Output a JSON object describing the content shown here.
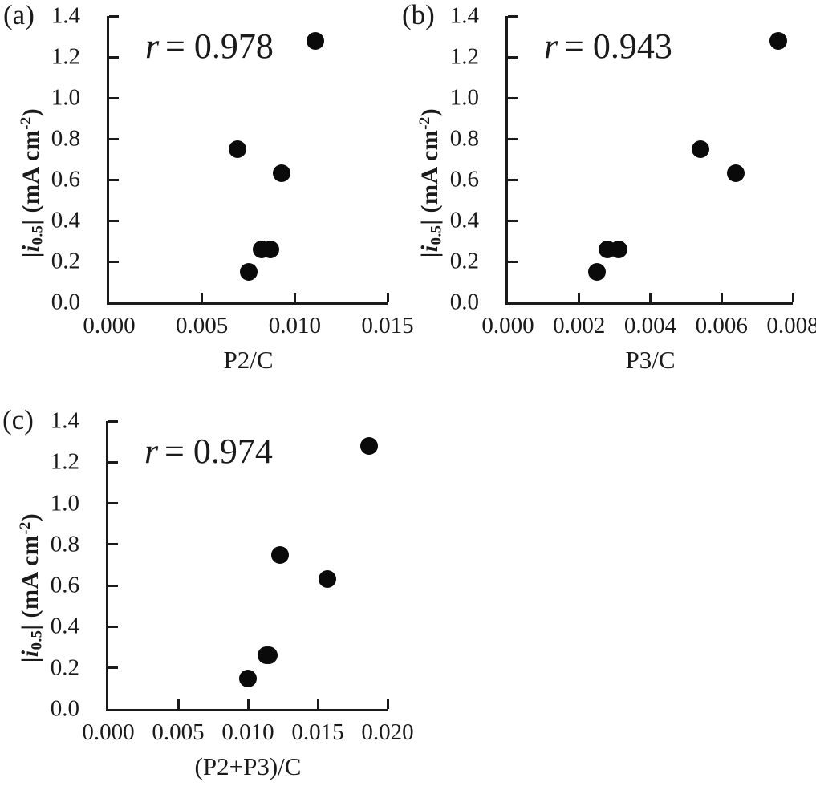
{
  "figure": {
    "background": "#ffffff"
  },
  "colors": {
    "points": "#0a0a0a",
    "axes": "#1a1a1a",
    "text": "#1a1a1a"
  },
  "chart_data": [
    {
      "type": "scatter",
      "panel_label": "(a)",
      "r_symbol": "r",
      "r_value": "= 0.978",
      "xlabel": "P2/C",
      "ylabel": {
        "pre": "|",
        "sym": "i",
        "sub": "0.5",
        "mid": "| (mA cm",
        "sup": "-2",
        "post": ")"
      },
      "xlim": [
        0,
        0.015
      ],
      "ylim": [
        0,
        1.4
      ],
      "xticks": [
        0,
        0.005,
        0.01,
        0.015
      ],
      "xtick_labels": [
        "0.000",
        "0.005",
        "0.010",
        "0.015"
      ],
      "yticks": [
        0,
        0.2,
        0.4,
        0.6,
        0.8,
        1.0,
        1.2,
        1.4
      ],
      "ytick_labels": [
        "0.0",
        "0.2",
        "0.4",
        "0.6",
        "0.8",
        "1.0",
        "1.2",
        "1.4"
      ],
      "grid": false,
      "legend": false,
      "points": [
        [
          0.0111,
          1.28
        ],
        [
          0.0069,
          0.75
        ],
        [
          0.0093,
          0.63
        ],
        [
          0.0082,
          0.26
        ],
        [
          0.0087,
          0.26
        ],
        [
          0.0075,
          0.15
        ]
      ]
    },
    {
      "type": "scatter",
      "panel_label": "(b)",
      "r_symbol": "r",
      "r_value": "= 0.943",
      "xlabel": "P3/C",
      "ylabel": {
        "pre": "|",
        "sym": "i",
        "sub": "0.5",
        "mid": "| (mA cm",
        "sup": "-2",
        "post": ")"
      },
      "xlim": [
        0,
        0.008
      ],
      "ylim": [
        0,
        1.4
      ],
      "xticks": [
        0,
        0.002,
        0.004,
        0.006,
        0.008
      ],
      "xtick_labels": [
        "0.000",
        "0.002",
        "0.004",
        "0.006",
        "0.008"
      ],
      "yticks": [
        0,
        0.2,
        0.4,
        0.6,
        0.8,
        1.0,
        1.2,
        1.4
      ],
      "ytick_labels": [
        "0.0",
        "0.2",
        "0.4",
        "0.6",
        "0.8",
        "1.0",
        "1.2",
        "1.4"
      ],
      "grid": false,
      "legend": false,
      "points": [
        [
          0.0076,
          1.28
        ],
        [
          0.0054,
          0.75
        ],
        [
          0.0064,
          0.63
        ],
        [
          0.0028,
          0.26
        ],
        [
          0.0031,
          0.26
        ],
        [
          0.0025,
          0.15
        ]
      ]
    },
    {
      "type": "scatter",
      "panel_label": "(c)",
      "r_symbol": "r",
      "r_value": "= 0.974",
      "xlabel": "(P2+P3)/C",
      "ylabel": {
        "pre": "|",
        "sym": "i",
        "sub": "0.5",
        "mid": "| (mA cm",
        "sup": "-2",
        "post": ")"
      },
      "xlim": [
        0,
        0.02
      ],
      "ylim": [
        0,
        1.4
      ],
      "xticks": [
        0,
        0.005,
        0.01,
        0.015,
        0.02
      ],
      "xtick_labels": [
        "0.000",
        "0.005",
        "0.010",
        "0.015",
        "0.020"
      ],
      "yticks": [
        0,
        0.2,
        0.4,
        0.6,
        0.8,
        1.0,
        1.2,
        1.4
      ],
      "ytick_labels": [
        "0.0",
        "0.2",
        "0.4",
        "0.6",
        "0.8",
        "1.0",
        "1.2",
        "1.4"
      ],
      "grid": false,
      "legend": false,
      "points": [
        [
          0.0187,
          1.28
        ],
        [
          0.0123,
          0.75
        ],
        [
          0.0157,
          0.63
        ],
        [
          0.0113,
          0.26
        ],
        [
          0.0115,
          0.26
        ],
        [
          0.01,
          0.15
        ]
      ]
    }
  ]
}
